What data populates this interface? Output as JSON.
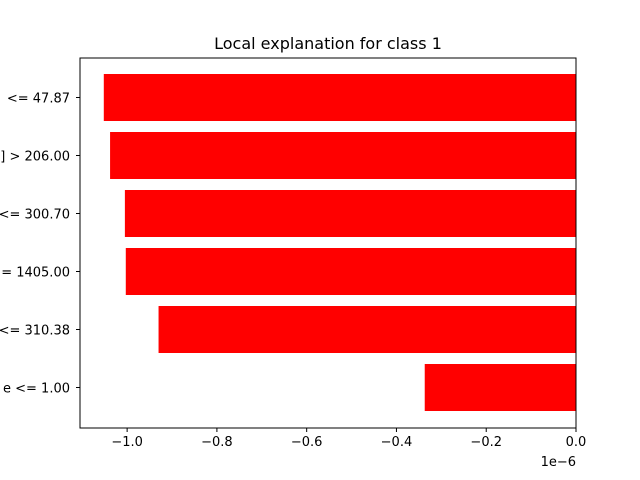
{
  "chart_data": {
    "type": "bar",
    "orientation": "horizontal",
    "title": "Local explanation for class 1",
    "xlabel": "",
    "ylabel": "",
    "x_offset_label": "1e−6",
    "xlim": [
      -1.105,
      0.0
    ],
    "x_ticks": [
      -1.0,
      -0.8,
      -0.6,
      -0.4,
      -0.2,
      0.0
    ],
    "x_tick_labels": [
      "−1.0",
      "−0.8",
      "−0.6",
      "−0.4",
      "−0.2",
      "0.0"
    ],
    "categories": [
      "<= 47.87",
      "] > 206.00",
      "<= 300.70",
      "= 1405.00",
      "<= 310.38",
      "e <= 1.00"
    ],
    "values": [
      -1.052,
      -1.038,
      -1.005,
      -1.003,
      -0.93,
      -0.337
    ],
    "bar_color": "#ff0000",
    "grid": false,
    "legend": "none"
  }
}
